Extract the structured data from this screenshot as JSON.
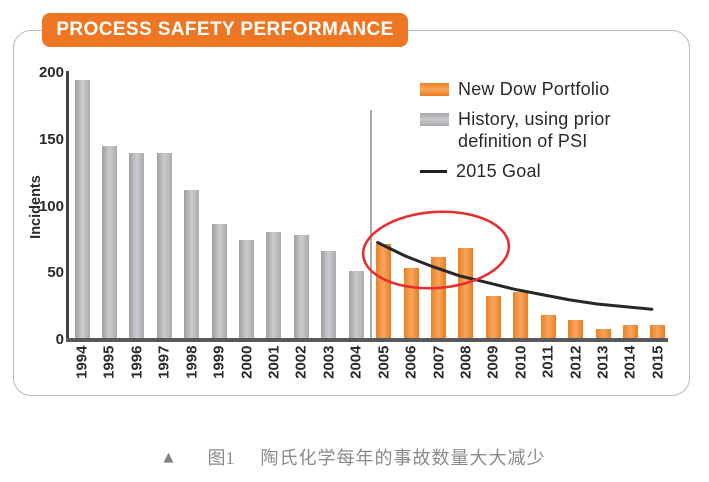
{
  "header": {
    "title": "PROCESS SAFETY PERFORMANCE"
  },
  "legend": {
    "items": [
      {
        "label": "New Dow Portfolio",
        "swatch": "orange-bar",
        "swatch_color": "#ee7c22"
      },
      {
        "label": "History, using prior definition of PSI",
        "swatch": "gray-bar",
        "swatch_color": "#b0b2b5"
      },
      {
        "label": "2015 Goal",
        "swatch": "black-line",
        "swatch_color": "#231f20"
      }
    ]
  },
  "chart_data": {
    "type": "bar",
    "title": "PROCESS SAFETY PERFORMANCE",
    "xlabel": "",
    "ylabel": "Incidents",
    "ylim": [
      0,
      200
    ],
    "yticks": [
      0,
      50,
      100,
      150,
      200
    ],
    "grid": false,
    "legend_position": "top-right",
    "categories": [
      "1994",
      "1995",
      "1996",
      "1997",
      "1998",
      "1999",
      "2000",
      "2001",
      "2002",
      "2003",
      "2004",
      "2005",
      "2006",
      "2007",
      "2008",
      "2009",
      "2010",
      "2011",
      "2012",
      "2013",
      "2014",
      "2015"
    ],
    "series": [
      {
        "name": "History, using prior definition of PSI",
        "color": "#b0b2b5",
        "categories": [
          "1994",
          "1995",
          "1996",
          "1997",
          "1998",
          "1999",
          "2000",
          "2001",
          "2002",
          "2003",
          "2004"
        ],
        "values": [
          195,
          145,
          140,
          140,
          112,
          87,
          75,
          81,
          79,
          67,
          52
        ]
      },
      {
        "name": "New Dow Portfolio",
        "color": "#ee7c22",
        "categories": [
          "2005",
          "2006",
          "2007",
          "2008",
          "2009",
          "2010",
          "2011",
          "2012",
          "2013",
          "2014",
          "2015"
        ],
        "values": [
          72,
          54,
          62,
          69,
          33,
          36,
          19,
          15,
          8,
          11,
          11
        ]
      }
    ],
    "goal_line": {
      "name": "2015 Goal",
      "color": "#231f20",
      "x": [
        "2005",
        "2006",
        "2007",
        "2008",
        "2009",
        "2010",
        "2011",
        "2012",
        "2013",
        "2014",
        "2015"
      ],
      "values": [
        73,
        63,
        55,
        48,
        43,
        38,
        34,
        30,
        27,
        25,
        23
      ]
    },
    "annotations": {
      "highlight_ellipse": {
        "color": "#e5302f",
        "covers_years": [
          "2005",
          "2006",
          "2007",
          "2008"
        ]
      },
      "divider_between": [
        "2004",
        "2005"
      ]
    }
  },
  "caption": {
    "marker": "▲",
    "figure_label": "图1",
    "text": "陶氏化学每年的事故数量大大减少"
  }
}
